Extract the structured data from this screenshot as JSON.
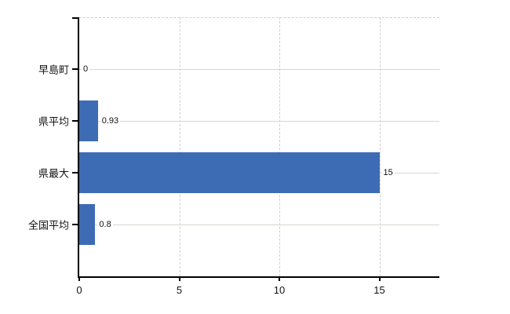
{
  "chart_data": {
    "type": "bar",
    "orientation": "horizontal",
    "title": "",
    "xlabel": "",
    "ylabel": "",
    "categories": [
      "早島町",
      "県平均",
      "県最大",
      "全国平均"
    ],
    "values": [
      0,
      0.93,
      15,
      0.8
    ],
    "value_labels": [
      "0",
      "0.93",
      "15",
      "0.8"
    ],
    "x_ticks": [
      0,
      5,
      10,
      15
    ],
    "x_tick_labels": [
      "0",
      "5",
      "10",
      "15"
    ],
    "xlim": [
      0,
      18
    ],
    "grid": true,
    "legend": "none",
    "bar_color": "#3d6cb4",
    "grid_color": "#d0d0d0",
    "axis_color": "#000000",
    "text_color": "#111111"
  }
}
